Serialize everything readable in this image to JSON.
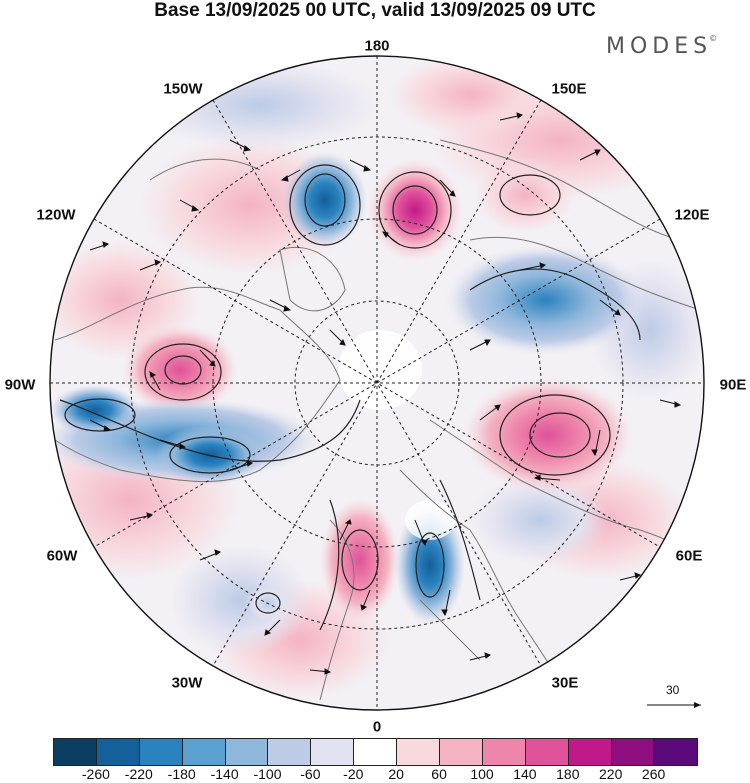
{
  "title": "Base 13/09/2025 00 UTC, valid 13/09/2025 09 UTC",
  "logo": "MODES",
  "logo_mark": "©",
  "longitude_labels": {
    "lon_180": "180",
    "lon_150w": "150W",
    "lon_150e": "150E",
    "lon_120w": "120W",
    "lon_120e": "120E",
    "lon_90w": "90W",
    "lon_90e": "90E",
    "lon_60w": "60W",
    "lon_60e": "60E",
    "lon_30w": "30W",
    "lon_30e": "30E",
    "lon_0": "0"
  },
  "wind_scale_label": "30",
  "colorbar": {
    "colors": [
      "#0b3d60",
      "#13609a",
      "#2a82bf",
      "#5aa0d0",
      "#8fb7dc",
      "#bccbe6",
      "#e2e2f0",
      "#ffffff",
      "#f8d9de",
      "#f4b3c3",
      "#ee86ab",
      "#e0529a",
      "#c2198a",
      "#900f80",
      "#5a0a7a"
    ],
    "ticks": [
      "-260",
      "-220",
      "-180",
      "-140",
      "-100",
      "-60",
      "-20",
      "20",
      "60",
      "100",
      "140",
      "180",
      "220",
      "260"
    ]
  },
  "anomalies": [
    {
      "type": "high",
      "value": 240,
      "color": "#c2198a"
    },
    {
      "type": "high",
      "value": 180,
      "color": "#e0529a"
    },
    {
      "type": "high",
      "value": 160,
      "color": "#e0529a"
    },
    {
      "type": "high",
      "value": 150,
      "color": "#e0529a"
    },
    {
      "type": "high",
      "value": 80,
      "color": "#f4b3c3"
    },
    {
      "type": "low",
      "value": -200,
      "color": "#2a82bf"
    },
    {
      "type": "low",
      "value": -180,
      "color": "#2a82bf"
    },
    {
      "type": "low",
      "value": -160,
      "color": "#2a82bf"
    },
    {
      "type": "low",
      "value": -140,
      "color": "#5aa0d0"
    },
    {
      "type": "low",
      "value": -140,
      "color": "#5aa0d0"
    }
  ]
}
